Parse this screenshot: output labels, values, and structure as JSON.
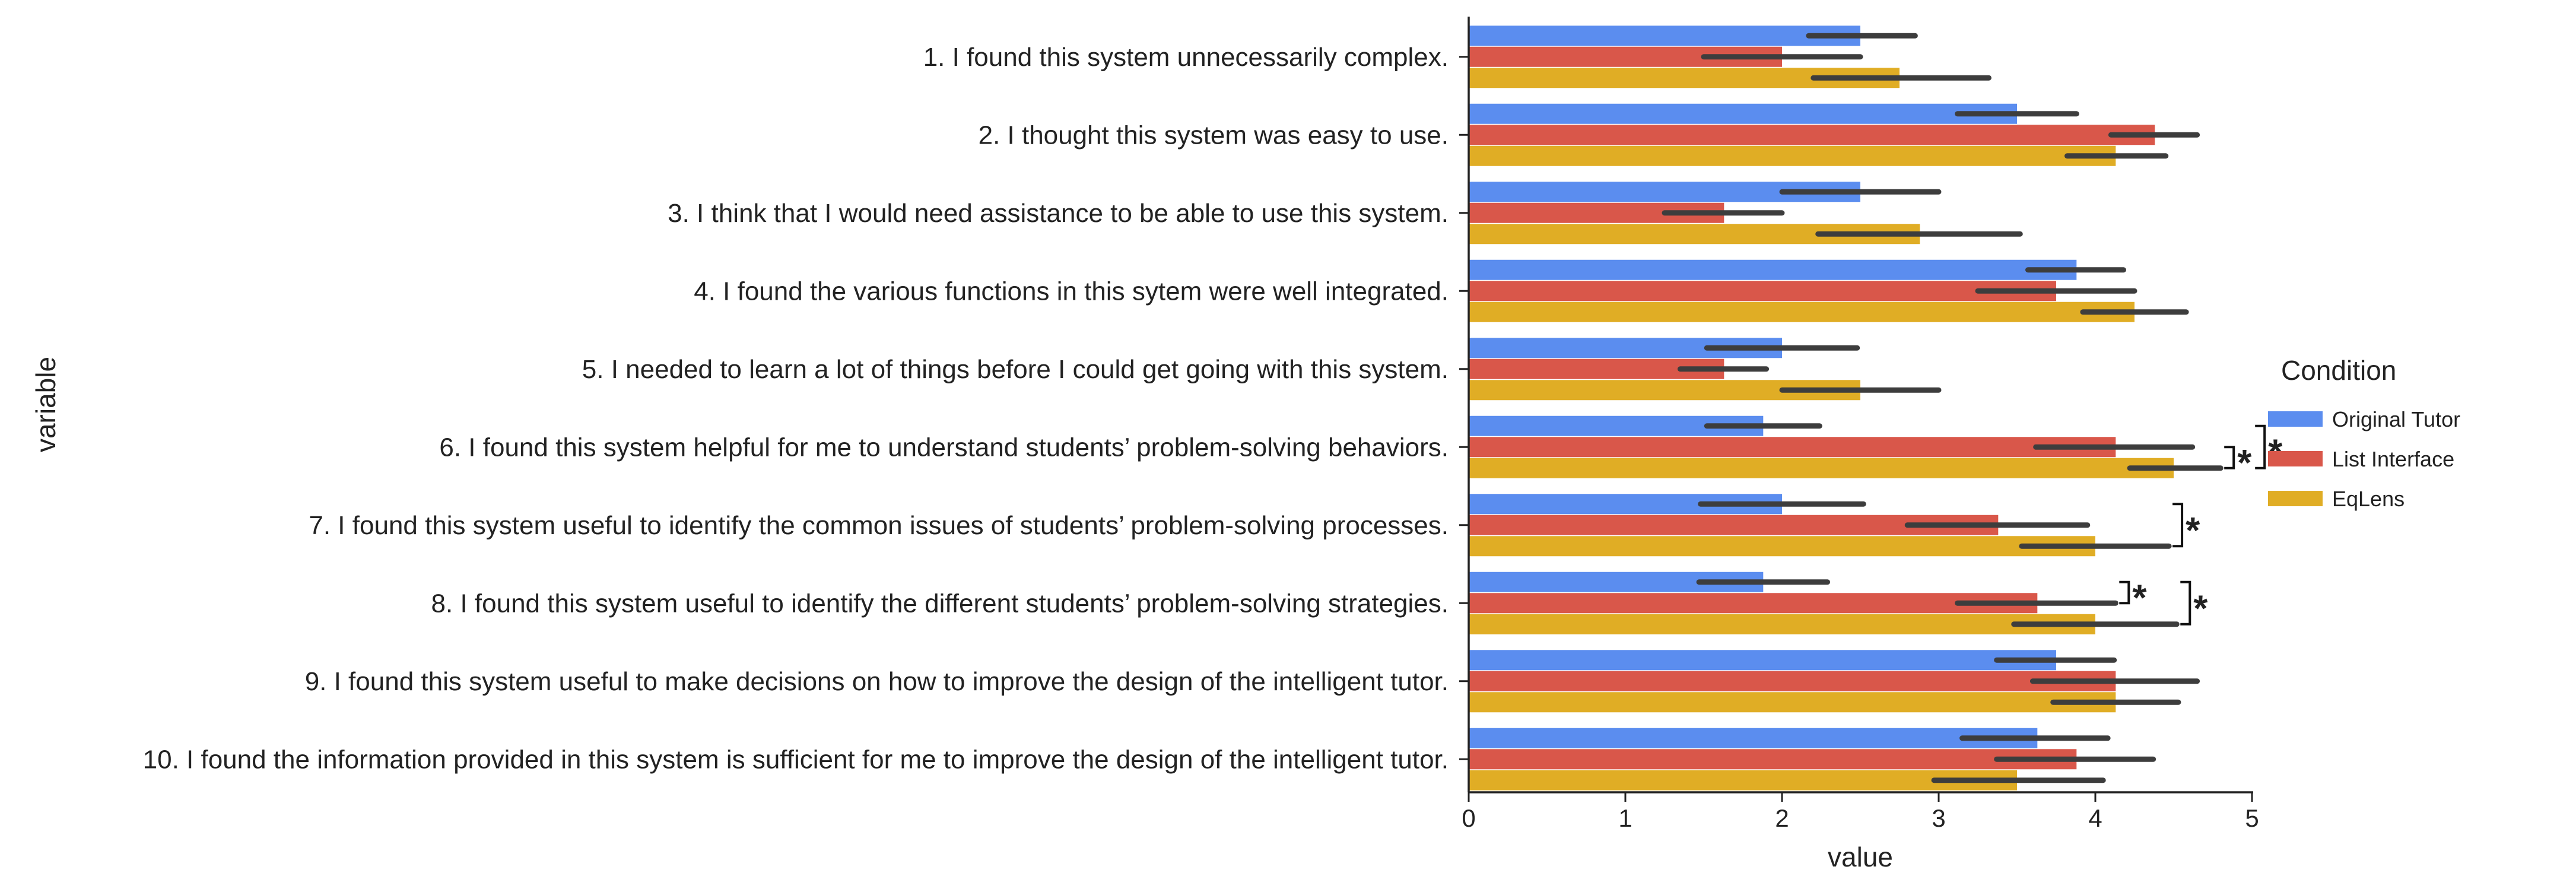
{
  "chart_data": {
    "type": "bar",
    "orientation": "horizontal",
    "xlabel": "value",
    "ylabel": "variable",
    "xlim": [
      0,
      5
    ],
    "xticks": [
      "0",
      "1",
      "2",
      "3",
      "4",
      "5"
    ],
    "grid": false,
    "legend": {
      "title": "Condition",
      "placement": "right"
    },
    "categories": [
      "1. I found this system unnecessarily complex.",
      "2. I thought this system was easy to use.",
      "3. I think that I would need assistance to be able to use this system.",
      "4. I found the various functions in this sytem were well integrated.",
      "5. I needed to learn a lot of things before I could get going with this system.",
      "6. I found this system helpful for me to understand students’ problem-solving behaviors.",
      "7. I found this system useful to identify the common issues of students’ problem-solving processes.",
      "8. I found this system useful to identify the different students’ problem-solving strategies.",
      "9. I found this system useful to make decisions on how to improve the design of the intelligent tutor.",
      "10. I found the information provided in this system is sufficient for me to improve the design of the intelligent tutor."
    ],
    "series": [
      {
        "name": "Original Tutor",
        "color": "#5b8def",
        "values": [
          2.5,
          3.5,
          2.5,
          3.88,
          2.0,
          1.88,
          2.0,
          1.88,
          3.75,
          3.63
        ],
        "ci": [
          [
            2.17,
            2.85
          ],
          [
            3.12,
            3.88
          ],
          [
            2.0,
            3.0
          ],
          [
            3.57,
            4.18
          ],
          [
            1.52,
            2.48
          ],
          [
            1.52,
            2.24
          ],
          [
            1.48,
            2.52
          ],
          [
            1.47,
            2.29
          ],
          [
            3.37,
            4.12
          ],
          [
            3.15,
            4.08
          ]
        ]
      },
      {
        "name": "List Interface",
        "color": "#d9574a",
        "values": [
          2.0,
          4.38,
          1.63,
          3.75,
          1.63,
          4.13,
          3.38,
          3.63,
          4.13,
          3.88
        ],
        "ci": [
          [
            1.5,
            2.5
          ],
          [
            4.1,
            4.65
          ],
          [
            1.25,
            2.0
          ],
          [
            3.25,
            4.25
          ],
          [
            1.35,
            1.9
          ],
          [
            3.62,
            4.62
          ],
          [
            2.8,
            3.95
          ],
          [
            3.12,
            4.13
          ],
          [
            3.6,
            4.65
          ],
          [
            3.37,
            4.37
          ]
        ]
      },
      {
        "name": "EqLens",
        "color": "#e0ad25",
        "values": [
          2.75,
          4.13,
          2.88,
          4.25,
          2.5,
          4.5,
          4.0,
          4.0,
          4.13,
          3.5
        ],
        "ci": [
          [
            2.2,
            3.32
          ],
          [
            3.82,
            4.45
          ],
          [
            2.23,
            3.52
          ],
          [
            3.92,
            4.58
          ],
          [
            2.0,
            3.0
          ],
          [
            4.22,
            4.8
          ],
          [
            3.53,
            4.47
          ],
          [
            3.48,
            4.52
          ],
          [
            3.73,
            4.53
          ],
          [
            2.97,
            4.05
          ]
        ]
      }
    ],
    "annotations": [
      {
        "text": "*",
        "category_index": 5,
        "between": [
          "List Interface",
          "EqLens"
        ]
      },
      {
        "text": "*",
        "category_index": 5,
        "between": [
          "Original Tutor",
          "EqLens"
        ]
      },
      {
        "text": "*",
        "category_index": 6,
        "between": [
          "Original Tutor",
          "EqLens"
        ]
      },
      {
        "text": "*",
        "category_index": 7,
        "between": [
          "Original Tutor",
          "List Interface"
        ]
      },
      {
        "text": "*",
        "category_index": 7,
        "between": [
          "Original Tutor",
          "EqLens"
        ]
      }
    ]
  }
}
